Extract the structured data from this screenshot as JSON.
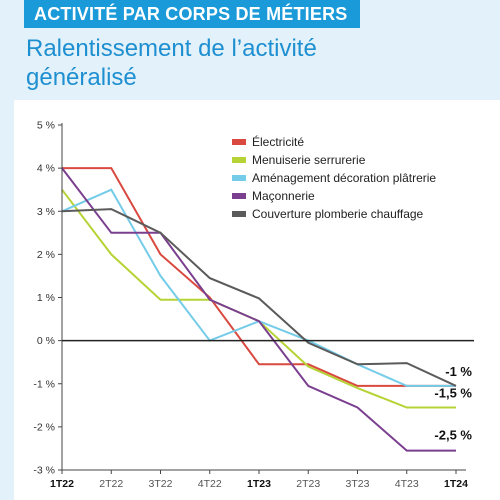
{
  "header": {
    "banner": "ACTIVITÉ PAR CORPS DE MÉTIERS",
    "title_line1": "Ralentissement de l’activité",
    "title_line2": "généralisé"
  },
  "chart_data": {
    "type": "line",
    "categories": [
      "1T22",
      "2T22",
      "3T22",
      "4T22",
      "1T23",
      "2T23",
      "3T23",
      "4T23",
      "1T24"
    ],
    "bold_categories": [
      "1T22",
      "1T23",
      "1T24"
    ],
    "yticks": [
      5,
      4,
      3,
      2,
      1,
      0,
      -1,
      -2,
      -3
    ],
    "ytick_labels": [
      "5 %",
      "4 %",
      "3 %",
      "2 %",
      "1 %",
      "0 %",
      "-1 %",
      "-2 %",
      "-3 %"
    ],
    "ylim": [
      -3,
      5
    ],
    "xlabel": "",
    "ylabel": "",
    "legend_position": "top-right",
    "series": [
      {
        "name": "Électricité",
        "color": "#d9493f",
        "values": [
          4,
          4,
          2,
          1,
          -0.55,
          -0.55,
          -1.05,
          -1.05,
          -1.05
        ]
      },
      {
        "name": "Menuiserie serrurerie",
        "color": "#b5d334",
        "values": [
          3.5,
          2,
          0.95,
          0.95,
          0.45,
          -0.6,
          -1.1,
          -1.55,
          -1.55
        ]
      },
      {
        "name": "Aménagement décoration plâtrerie",
        "color": "#74cce8",
        "values": [
          3,
          3.5,
          1.5,
          0,
          0.45,
          0,
          -0.55,
          -1.05,
          -1.05
        ]
      },
      {
        "name": "Maçonnerie",
        "color": "#7b3f8f",
        "values": [
          4,
          2.5,
          2.5,
          0.95,
          0.45,
          -1.05,
          -1.55,
          -2.55,
          -2.55
        ]
      },
      {
        "name": "Couverture plomberie chauffage",
        "color": "#5b5b5b",
        "values": [
          3,
          3.05,
          2.5,
          1.45,
          0.98,
          -0.05,
          -0.55,
          -0.52,
          -1.05
        ]
      }
    ],
    "annotations": [
      {
        "text": "-1 %",
        "value": -1
      },
      {
        "text": "-1,5 %",
        "value": -1.5
      },
      {
        "text": "-2,5 %",
        "value": -2.5
      }
    ]
  }
}
